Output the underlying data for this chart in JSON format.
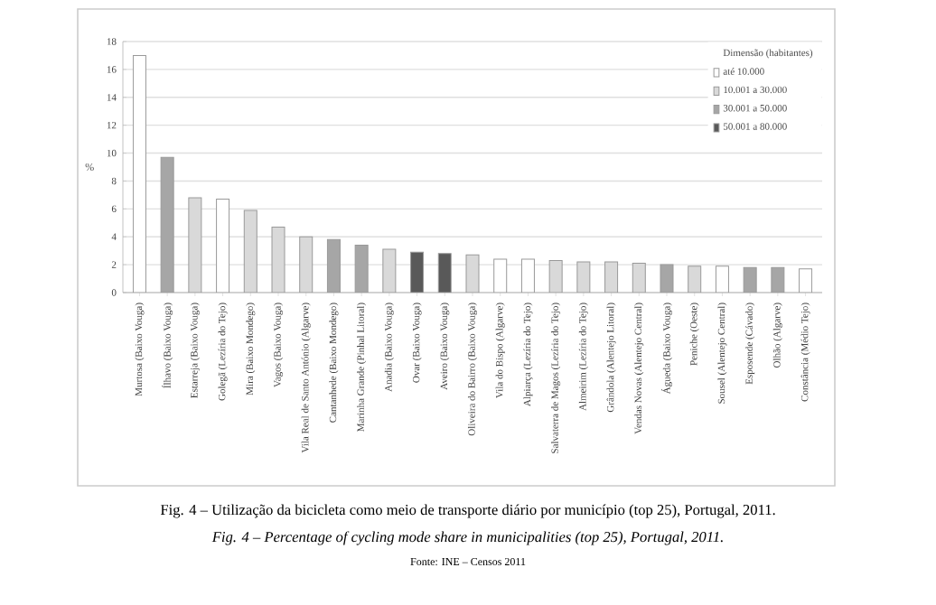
{
  "chart_data": {
    "type": "bar",
    "title": "Fig. 4 – Utilização da bicicleta como meio de transporte diário por município (top 25), Portugal, 2011.",
    "subtitle": "Fig. 4 – Percentage of cycling mode share in municipalities (top 25), Portugal, 2011.",
    "annotations": [
      "Fonte: INE – Censos 2011"
    ],
    "ylabel": "%",
    "legend_title": "Dimensão (habitantes)",
    "legend": "top right",
    "grid": "y",
    "ylim": [
      0,
      18
    ],
    "yticks": [
      0,
      2,
      4,
      6,
      8,
      10,
      12,
      14,
      16,
      18
    ],
    "categories": [
      "Murtosa (Baixo Vouga)",
      "Ílhavo (Baixo Vouga)",
      "Estarreja (Baixo Vouga)",
      "Golegã (Lezíria do Tejo)",
      "Mira (Baixo Mondego)",
      "Vagos (Baixo Vouga)",
      "Vila Real de Santo António (Algarve)",
      "Cantanhede (Baixo Mondego)",
      "Marinha Grande (Pinhal Litoral)",
      "Anadia (Baixo Vouga)",
      "Ovar (Baixo Vouga)",
      "Aveiro (Baixo Vouga)",
      "Oliveira do Bairro (Baixo Vouga)",
      "Vila do Bispo (Algarve)",
      "Alpiarça (Lezíria do Tejo)",
      "Salvaterra de Magos (Lezíria do Tejo)",
      "Almeirim (Lezíria do Tejo)",
      "Grândola (Alentejo Litoral)",
      "Vendas Novas (Alentejo Central)",
      "Águeda (Baixo Vouga)",
      "Peniche (Oeste)",
      "Sousel (Alentejo Central)",
      "Esposende (Cávado)",
      "Olhão (Algarve)",
      "Constância (Médio Tejo)"
    ],
    "series": [
      {
        "name": "até 10.000",
        "color": "#ffffff",
        "values": [
          17.0,
          null,
          null,
          6.7,
          null,
          null,
          null,
          null,
          null,
          null,
          null,
          null,
          null,
          2.4,
          2.4,
          null,
          null,
          null,
          null,
          null,
          null,
          1.9,
          null,
          null,
          1.7
        ]
      },
      {
        "name": "10.001 a 30.000",
        "color": "#d9d9d9",
        "values": [
          null,
          null,
          6.8,
          null,
          5.9,
          4.7,
          4.0,
          null,
          null,
          3.1,
          null,
          null,
          2.7,
          null,
          null,
          2.3,
          2.2,
          2.2,
          2.1,
          null,
          1.9,
          null,
          null,
          null,
          null
        ]
      },
      {
        "name": "30.001 a 50.000",
        "color": "#a6a6a6",
        "values": [
          null,
          9.7,
          null,
          null,
          null,
          null,
          null,
          3.8,
          3.4,
          null,
          null,
          null,
          null,
          null,
          null,
          null,
          null,
          null,
          null,
          2.0,
          null,
          null,
          1.8,
          1.8,
          null
        ]
      },
      {
        "name": "50.001 a 80.000",
        "color": "#595959",
        "values": [
          null,
          null,
          null,
          null,
          null,
          null,
          null,
          null,
          null,
          null,
          2.9,
          2.8,
          null,
          null,
          null,
          null,
          null,
          null,
          null,
          null,
          null,
          null,
          null,
          null,
          null
        ]
      }
    ]
  }
}
